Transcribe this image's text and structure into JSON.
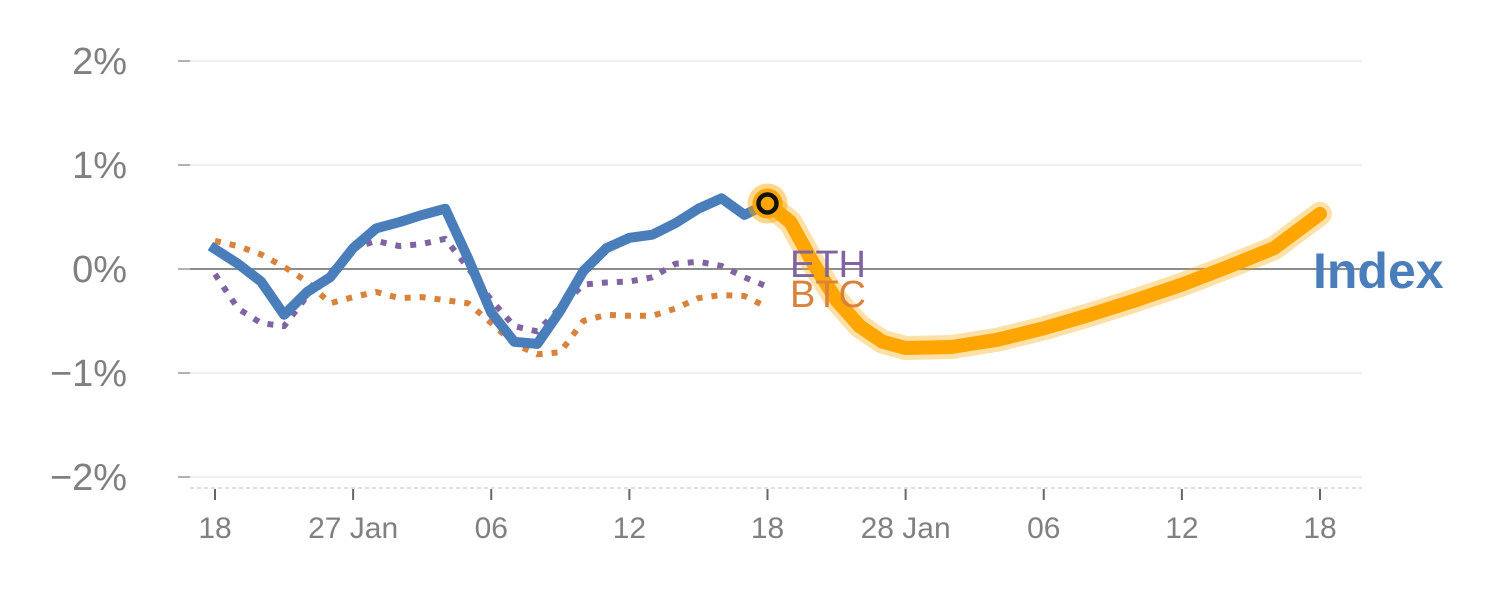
{
  "chart_data": {
    "type": "line",
    "title": "",
    "xlabel": "",
    "ylabel": "",
    "ylim": [
      -2,
      2
    ],
    "yticks": [
      {
        "value": 2,
        "label": "2%"
      },
      {
        "value": 1,
        "label": "1%"
      },
      {
        "value": 0,
        "label": "0%"
      },
      {
        "value": -1,
        "label": "−1%"
      },
      {
        "value": -2,
        "label": "−2%"
      }
    ],
    "xlim": [
      0,
      48
    ],
    "xticks": [
      {
        "value": 0,
        "label": "18"
      },
      {
        "value": 6,
        "label": "27 Jan"
      },
      {
        "value": 12,
        "label": "06"
      },
      {
        "value": 18,
        "label": "12"
      },
      {
        "value": 24,
        "label": "18"
      },
      {
        "value": 30,
        "label": "28 Jan"
      },
      {
        "value": 36,
        "label": "06"
      },
      {
        "value": 42,
        "label": "12"
      },
      {
        "value": 48,
        "label": "18"
      }
    ],
    "series": [
      {
        "name": "Index",
        "label": "Index",
        "color": "#4a7ebb",
        "style": "solid",
        "x": [
          -0.2,
          1,
          2,
          3,
          4,
          5,
          6,
          7,
          8,
          9,
          10,
          11,
          12,
          13,
          14,
          15,
          16,
          17,
          18,
          19,
          20,
          21,
          22,
          23,
          24
        ],
        "values": [
          0.22,
          0.05,
          -0.12,
          -0.44,
          -0.22,
          -0.08,
          0.2,
          0.39,
          0.45,
          0.52,
          0.58,
          0.1,
          -0.42,
          -0.7,
          -0.72,
          -0.4,
          -0.02,
          0.2,
          0.3,
          0.33,
          0.44,
          0.58,
          0.68,
          0.52,
          0.63
        ]
      },
      {
        "name": "ETH",
        "label": "ETH",
        "color": "#8064a2",
        "style": "dotted",
        "x": [
          0,
          1,
          2,
          3,
          4,
          5,
          6,
          7,
          8,
          9,
          10,
          11,
          12,
          13,
          14,
          15,
          16,
          17,
          18,
          19,
          20,
          21,
          22,
          23,
          24
        ],
        "values": [
          -0.05,
          -0.38,
          -0.52,
          -0.55,
          -0.26,
          -0.04,
          0.2,
          0.27,
          0.22,
          0.24,
          0.29,
          0.01,
          -0.3,
          -0.55,
          -0.6,
          -0.37,
          -0.15,
          -0.13,
          -0.12,
          -0.08,
          0.05,
          0.07,
          0.03,
          -0.08,
          -0.17
        ]
      },
      {
        "name": "BTC",
        "label": "BTC",
        "color": "#d9823b",
        "style": "dotted",
        "x": [
          0,
          1,
          2,
          3,
          4,
          5,
          6,
          7,
          8,
          9,
          10,
          11,
          12,
          13,
          14,
          15,
          16,
          17,
          18,
          19,
          20,
          21,
          22,
          23,
          24
        ],
        "values": [
          0.27,
          0.22,
          0.14,
          0.02,
          -0.12,
          -0.33,
          -0.27,
          -0.22,
          -0.28,
          -0.27,
          -0.3,
          -0.33,
          -0.52,
          -0.72,
          -0.82,
          -0.8,
          -0.5,
          -0.44,
          -0.45,
          -0.45,
          -0.38,
          -0.28,
          -0.25,
          -0.26,
          -0.37
        ]
      },
      {
        "name": "Index projection",
        "color": "#ffa500",
        "style": "thick",
        "x": [
          24,
          25,
          26,
          27,
          28,
          29,
          30,
          32,
          34,
          36,
          38,
          40,
          42,
          44,
          46,
          48
        ],
        "values": [
          0.63,
          0.45,
          0.05,
          -0.3,
          -0.55,
          -0.7,
          -0.76,
          -0.75,
          -0.68,
          -0.57,
          -0.44,
          -0.3,
          -0.15,
          0.02,
          0.2,
          0.53
        ]
      }
    ],
    "marker": {
      "x": 24,
      "value": 0.63
    }
  }
}
